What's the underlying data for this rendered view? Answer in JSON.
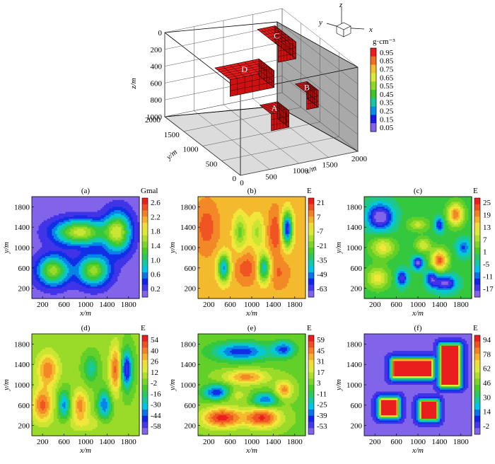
{
  "chart_data": {
    "model3d": {
      "type": "3d-voxel",
      "xlabel": "x/m",
      "ylabel": "y/m",
      "zlabel": "z/m",
      "x_ticks": [
        "0",
        "500",
        "1000",
        "1500",
        "2000"
      ],
      "y_ticks": [
        "0",
        "500",
        "1000",
        "1500",
        "2000"
      ],
      "z_ticks": [
        "0",
        "200",
        "400",
        "600",
        "800",
        "1000"
      ],
      "axis_glyph": {
        "x": "x",
        "y": "y",
        "z": "z"
      },
      "blocks": [
        {
          "label": "A",
          "x": [
            750,
            1050
          ],
          "y": [
            350,
            650
          ],
          "z": [
            500,
            700
          ]
        },
        {
          "label": "B",
          "x": [
            1450,
            1650
          ],
          "y": [
            500,
            800
          ],
          "z": [
            400,
            600
          ]
        },
        {
          "label": "C",
          "x": [
            1450,
            1750
          ],
          "y": [
            1250,
            1800
          ],
          "z": [
            100,
            300
          ]
        },
        {
          "label": "D",
          "x": [
            500,
            1250
          ],
          "y": [
            1050,
            1450
          ],
          "z": [
            300,
            500
          ]
        }
      ],
      "colorbar": {
        "title": "g·cm⁻³",
        "ticks": [
          "0.95",
          "0.85",
          "0.75",
          "0.65",
          "0.55",
          "0.45",
          "0.35",
          "0.25",
          "0.15",
          "0.05"
        ]
      }
    },
    "panels": [
      {
        "id": "a",
        "title": "(a)",
        "type": "heatmap",
        "unit": "Gmal",
        "x_ticks": [
          "200",
          "600",
          "1000",
          "1400",
          "1800"
        ],
        "y_ticks": [
          "1800",
          "1400",
          "1000",
          "600",
          "200"
        ],
        "xlabel": "x/m",
        "ylabel": "y/m",
        "xlim": [
          0,
          2000
        ],
        "ylim": [
          0,
          2000
        ],
        "colorbar_ticks": [
          "2.6",
          "2.2",
          "1.8",
          "1.4",
          "1.0",
          "0.6",
          "0.2"
        ],
        "vmin": 0.0,
        "vmax": 2.8,
        "sources": [
          {
            "x": 900,
            "y": 1300,
            "sx": 330,
            "sy": 170,
            "a": 1.8
          },
          {
            "x": 1600,
            "y": 1300,
            "sx": 170,
            "sy": 270,
            "a": 1.7
          },
          {
            "x": 400,
            "y": 550,
            "sx": 200,
            "sy": 200,
            "a": 1.6
          },
          {
            "x": 1150,
            "y": 550,
            "sx": 200,
            "sy": 200,
            "a": 1.6
          }
        ]
      },
      {
        "id": "b",
        "title": "(b)",
        "type": "heatmap",
        "unit": "E",
        "x_ticks": [
          "200",
          "600",
          "1000",
          "1400",
          "1800"
        ],
        "y_ticks": [
          "1800",
          "1400",
          "1000",
          "600",
          "200"
        ],
        "xlabel": "x/m",
        "ylabel": "y/m",
        "xlim": [
          0,
          2000
        ],
        "ylim": [
          0,
          2000
        ],
        "colorbar_ticks": [
          "21",
          "7",
          "-7",
          "-21",
          "-35",
          "-49",
          "-63"
        ],
        "vmin": -70,
        "vmax": 28,
        "base": 8,
        "sources": [
          {
            "x": 480,
            "y": 600,
            "sx": 80,
            "sy": 190,
            "a": -55
          },
          {
            "x": 1230,
            "y": 600,
            "sx": 80,
            "sy": 190,
            "a": -50
          },
          {
            "x": 1660,
            "y": 1370,
            "sx": 70,
            "sy": 230,
            "a": -70
          },
          {
            "x": 160,
            "y": 1400,
            "sx": 140,
            "sy": 320,
            "a": 14
          },
          {
            "x": 1440,
            "y": 1300,
            "sx": 90,
            "sy": 300,
            "a": 16
          },
          {
            "x": 900,
            "y": 600,
            "sx": 140,
            "sy": 200,
            "a": 14
          },
          {
            "x": 1500,
            "y": 500,
            "sx": 130,
            "sy": 200,
            "a": 10
          },
          {
            "x": 780,
            "y": 1300,
            "sx": 90,
            "sy": 240,
            "a": -28
          },
          {
            "x": 1100,
            "y": 1300,
            "sx": 90,
            "sy": 240,
            "a": -20
          }
        ]
      },
      {
        "id": "c",
        "title": "(c)",
        "type": "heatmap",
        "unit": "E",
        "x_ticks": [
          "200",
          "600",
          "1000",
          "1400",
          "1800"
        ],
        "y_ticks": [
          "1800",
          "1400",
          "1000",
          "600",
          "200"
        ],
        "xlabel": "x/m",
        "ylabel": "y/m",
        "xlim": [
          0,
          2000
        ],
        "ylim": [
          0,
          2000
        ],
        "colorbar_ticks": [
          "25",
          "19",
          "13",
          "7",
          "1",
          "-5",
          "-11",
          "-17"
        ],
        "vmin": -20,
        "vmax": 28,
        "base": 0,
        "sources": [
          {
            "x": 300,
            "y": 1600,
            "sx": 170,
            "sy": 180,
            "a": -22
          },
          {
            "x": 1700,
            "y": 1650,
            "sx": 110,
            "sy": 160,
            "a": 22
          },
          {
            "x": 350,
            "y": 1000,
            "sx": 160,
            "sy": 140,
            "a": 14
          },
          {
            "x": 1400,
            "y": 750,
            "sx": 110,
            "sy": 150,
            "a": 24
          },
          {
            "x": 250,
            "y": 400,
            "sx": 150,
            "sy": 150,
            "a": 14
          },
          {
            "x": 1500,
            "y": 300,
            "sx": 150,
            "sy": 110,
            "a": -20
          },
          {
            "x": 1000,
            "y": 700,
            "sx": 70,
            "sy": 90,
            "a": -20
          },
          {
            "x": 700,
            "y": 400,
            "sx": 70,
            "sy": 110,
            "a": -18
          },
          {
            "x": 1250,
            "y": 400,
            "sx": 70,
            "sy": 110,
            "a": -16
          },
          {
            "x": 1400,
            "y": 1450,
            "sx": 60,
            "sy": 100,
            "a": -16
          },
          {
            "x": 1000,
            "y": 1450,
            "sx": 140,
            "sy": 90,
            "a": 10
          },
          {
            "x": 1850,
            "y": 1000,
            "sx": 90,
            "sy": 120,
            "a": -12
          },
          {
            "x": 1100,
            "y": 1050,
            "sx": 100,
            "sy": 100,
            "a": 12
          }
        ]
      },
      {
        "id": "d",
        "title": "(d)",
        "type": "heatmap",
        "unit": "E",
        "x_ticks": [
          "200",
          "600",
          "1000",
          "1400",
          "1800"
        ],
        "y_ticks": [
          "1800",
          "1400",
          "1000",
          "600",
          "200"
        ],
        "xlabel": "x/m",
        "ylabel": "y/m",
        "xlim": [
          0,
          2000
        ],
        "ylim": [
          0,
          2000
        ],
        "colorbar_ticks": [
          "54",
          "40",
          "26",
          "12",
          "-2",
          "-16",
          "-30",
          "-44",
          "-58"
        ],
        "vmin": -62,
        "vmax": 60,
        "base": 5,
        "sources": [
          {
            "x": 300,
            "y": 1300,
            "sx": 140,
            "sy": 230,
            "a": 40
          },
          {
            "x": 200,
            "y": 600,
            "sx": 130,
            "sy": 230,
            "a": 45
          },
          {
            "x": 900,
            "y": 600,
            "sx": 100,
            "sy": 200,
            "a": 38
          },
          {
            "x": 1560,
            "y": 1300,
            "sx": 80,
            "sy": 330,
            "a": 45
          },
          {
            "x": 1760,
            "y": 1300,
            "sx": 80,
            "sy": 270,
            "a": -60
          },
          {
            "x": 600,
            "y": 600,
            "sx": 80,
            "sy": 200,
            "a": -40
          },
          {
            "x": 1350,
            "y": 600,
            "sx": 90,
            "sy": 200,
            "a": -45
          },
          {
            "x": 1100,
            "y": 1320,
            "sx": 90,
            "sy": 180,
            "a": -28
          },
          {
            "x": 1000,
            "y": 250,
            "sx": 300,
            "sy": 120,
            "a": 14
          }
        ]
      },
      {
        "id": "e",
        "title": "(e)",
        "type": "heatmap",
        "unit": "E",
        "x_ticks": [
          "200",
          "600",
          "1000",
          "1400",
          "1800"
        ],
        "y_ticks": [
          "1800",
          "1400",
          "1000",
          "600",
          "200"
        ],
        "xlabel": "x/m",
        "ylabel": "y/m",
        "xlim": [
          0,
          2000
        ],
        "ylim": [
          0,
          2000
        ],
        "colorbar_ticks": [
          "59",
          "45",
          "31",
          "17",
          "3",
          "-11",
          "-25",
          "-39",
          "-53"
        ],
        "vmin": -58,
        "vmax": 64,
        "base": 6,
        "sources": [
          {
            "x": 800,
            "y": 1650,
            "sx": 380,
            "sy": 130,
            "a": -48
          },
          {
            "x": 1600,
            "y": 1700,
            "sx": 140,
            "sy": 110,
            "a": -42
          },
          {
            "x": 900,
            "y": 1150,
            "sx": 280,
            "sy": 100,
            "a": 40
          },
          {
            "x": 350,
            "y": 850,
            "sx": 180,
            "sy": 100,
            "a": -50
          },
          {
            "x": 1250,
            "y": 700,
            "sx": 170,
            "sy": 100,
            "a": -42
          },
          {
            "x": 700,
            "y": 800,
            "sx": 160,
            "sy": 90,
            "a": 18
          },
          {
            "x": 1600,
            "y": 900,
            "sx": 110,
            "sy": 120,
            "a": 40
          },
          {
            "x": 450,
            "y": 350,
            "sx": 260,
            "sy": 140,
            "a": 58
          },
          {
            "x": 1200,
            "y": 350,
            "sx": 230,
            "sy": 140,
            "a": 55
          }
        ]
      },
      {
        "id": "f",
        "title": "(f)",
        "type": "heatmap",
        "unit": "E",
        "x_ticks": [
          "200",
          "600",
          "1000",
          "1400",
          "1800"
        ],
        "y_ticks": [
          "1800",
          "1400",
          "1000",
          "600",
          "200"
        ],
        "xlabel": "x/m",
        "ylabel": "y/m",
        "xlim": [
          0,
          2000
        ],
        "ylim": [
          0,
          2000
        ],
        "colorbar_ticks": [
          "94",
          "78",
          "62",
          "46",
          "30",
          "14",
          "-2"
        ],
        "vmin": -8,
        "vmax": 100,
        "shape_mode": "boxes",
        "sharp": 55,
        "boxes": [
          {
            "x": [
              550,
              1250
            ],
            "y": [
              1170,
              1470
            ],
            "a": 98
          },
          {
            "x": [
              1450,
              1750
            ],
            "y": [
              1000,
              1750
            ],
            "a": 98
          },
          {
            "x": [
              320,
              600
            ],
            "y": [
              400,
              700
            ],
            "a": 98
          },
          {
            "x": [
              1070,
              1330
            ],
            "y": [
              350,
              650
            ],
            "a": 98
          }
        ]
      }
    ]
  }
}
